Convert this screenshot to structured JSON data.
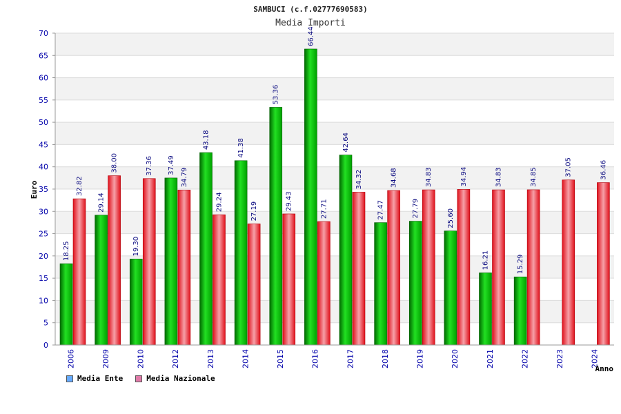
{
  "chart_data": {
    "type": "bar",
    "title": "SAMBUCI (c.f.02777690583)",
    "subtitle": "Media Importi",
    "xlabel": "Anno",
    "ylabel": "Euro",
    "ylim": [
      0,
      70
    ],
    "yticks": [
      0,
      5,
      10,
      15,
      20,
      25,
      30,
      35,
      40,
      45,
      50,
      55,
      60,
      65,
      70
    ],
    "grid": true,
    "legend_position": "bottom-left",
    "categories": [
      "2006",
      "2009",
      "2010",
      "2012",
      "2013",
      "2014",
      "2015",
      "2016",
      "2017",
      "2018",
      "2019",
      "2020",
      "2021",
      "2022",
      "2023",
      "2024"
    ],
    "series": [
      {
        "name": "Media Ente",
        "color": "#00c000",
        "legend_color": "#66aaff",
        "values": [
          18.25,
          29.14,
          19.3,
          37.49,
          43.18,
          41.38,
          53.36,
          66.44,
          42.64,
          27.47,
          27.79,
          25.6,
          16.21,
          15.29,
          null,
          null
        ],
        "labels": [
          "18.25",
          "29.14",
          "19.30",
          "37.49",
          "43.18",
          "41.38",
          "53.36",
          "66.44",
          "42.64",
          "27.47",
          "27.79",
          "25.60",
          "16.21",
          "15.29",
          null,
          null
        ]
      },
      {
        "name": "Media Nazionale",
        "color": "#e8101c",
        "legend_color": "#e07aa8",
        "values": [
          32.82,
          38.0,
          37.36,
          34.79,
          29.24,
          27.19,
          29.43,
          27.71,
          34.32,
          34.68,
          34.83,
          34.94,
          34.83,
          34.85,
          37.05,
          36.46
        ],
        "labels": [
          "32.82",
          "38.00",
          "37.36",
          "34.79",
          "29.24",
          "27.19",
          "29.43",
          "27.71",
          "34.32",
          "34.68",
          "34.83",
          "34.94",
          "34.83",
          "34.85",
          "37.05",
          "36.46"
        ]
      }
    ]
  }
}
